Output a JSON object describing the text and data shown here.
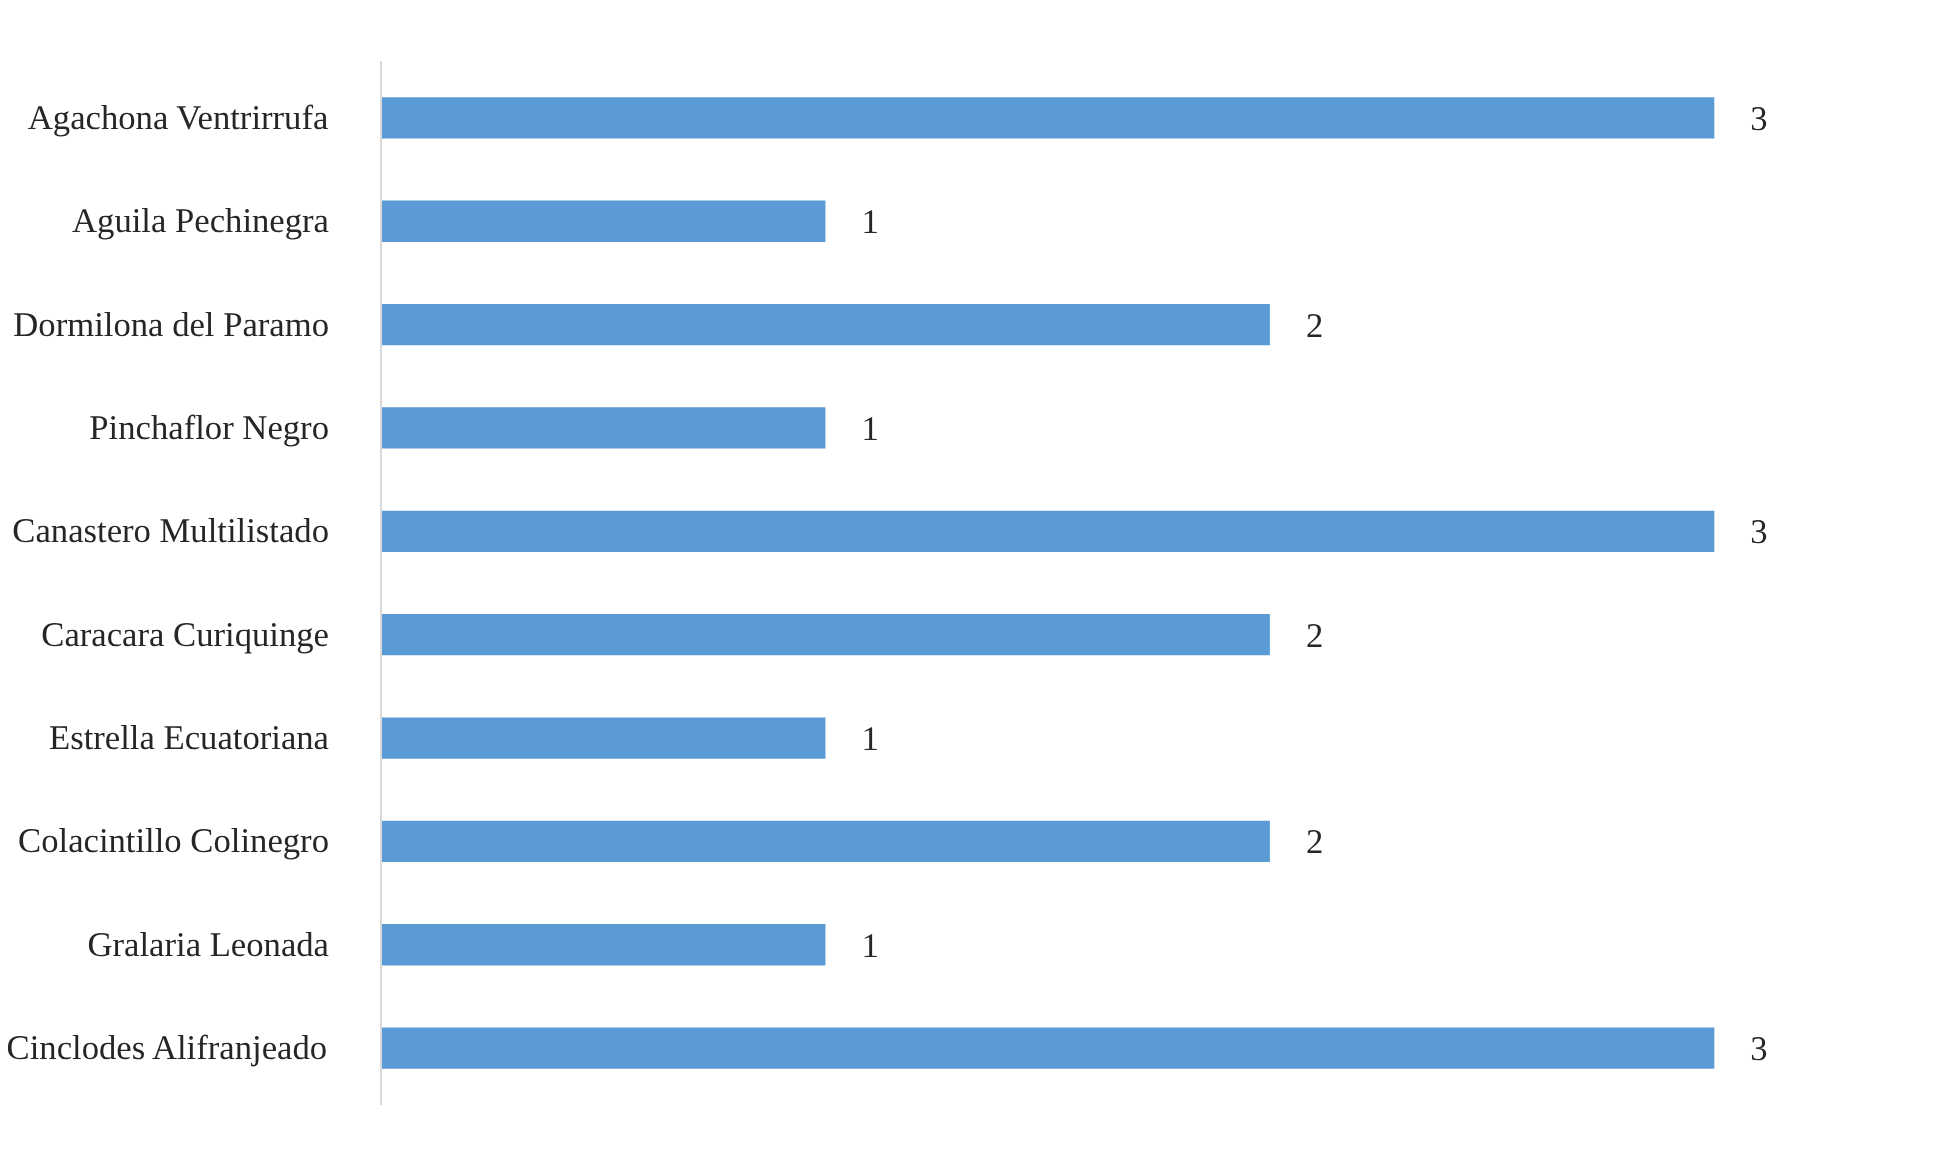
{
  "chart_data": {
    "type": "bar",
    "orientation": "horizontal",
    "categories": [
      "Agachona Ventrirrufa",
      "Aguila Pechinegra",
      "Dormilona del Paramo",
      "Pinchaflor Negro",
      "Canastero Multilistado",
      "Caracara Curiquinge",
      "Estrella Ecuatoriana",
      "Colacintillo Colinegro",
      "Gralaria Leonada",
      "Cinclodes Alifranjeado"
    ],
    "values": [
      3,
      1,
      2,
      1,
      3,
      2,
      1,
      2,
      1,
      3
    ],
    "color": "#5b9bd5",
    "data_labels": true,
    "tick_labels": "y"
  }
}
